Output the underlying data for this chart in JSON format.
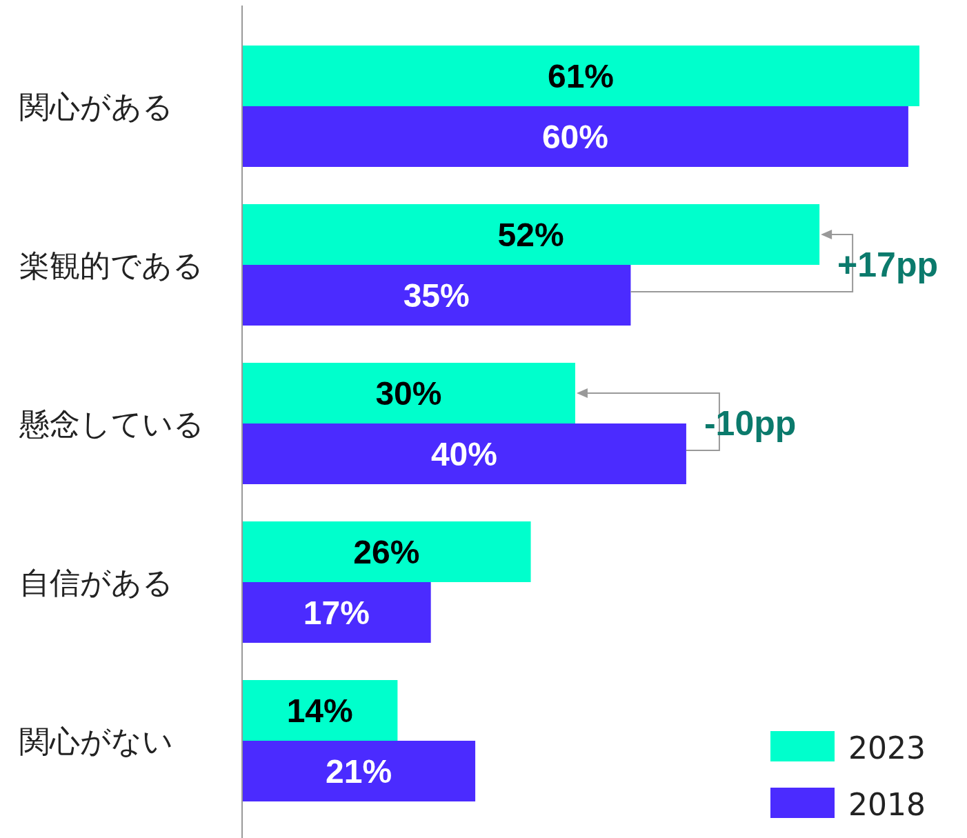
{
  "chart_data": {
    "type": "bar",
    "orientation": "horizontal",
    "categories": [
      "関心がある",
      "楽観的である",
      "懸念している",
      "自信がある",
      "関心がない"
    ],
    "series": [
      {
        "name": "2023",
        "color": "#00ffcc",
        "values": [
          61,
          52,
          30,
          26,
          14
        ],
        "value_labels": [
          "61%",
          "52%",
          "30%",
          "26%",
          "14%"
        ]
      },
      {
        "name": "2018",
        "color": "#4b2bff",
        "values": [
          60,
          35,
          40,
          17,
          21
        ],
        "value_labels": [
          "60%",
          "35%",
          "40%",
          "17%",
          "21%"
        ]
      }
    ],
    "tick_labels": "y",
    "legend": "bottom right",
    "annotations": [
      "+17pp",
      "-10pp"
    ]
  }
}
